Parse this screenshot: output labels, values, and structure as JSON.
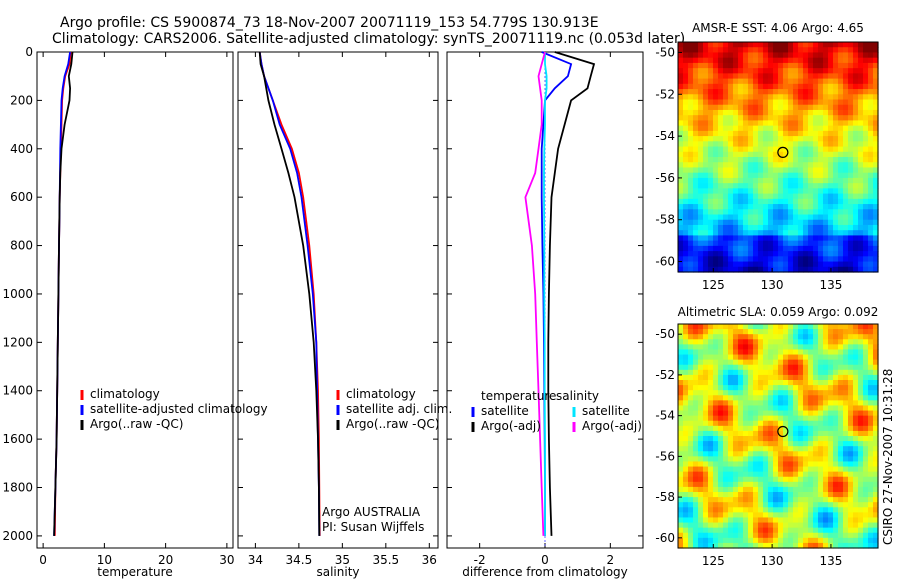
{
  "header": {
    "line1": "Argo profile: CS 5900874_73 18-Nov-2007 20071119_153 54.779S 130.913E",
    "line2": "Climatology: CARS2006. Satellite-adjusted climatology: synTS_20071119.nc (0.053d later)"
  },
  "side_stamp": "CSIRO 27-Nov-2007 10:31:28",
  "colors": {
    "red": "#ff0000",
    "blue": "#0000ff",
    "black": "#000000",
    "cyan": "#00e5ff",
    "magenta": "#ff00ff"
  },
  "chart_data": [
    {
      "type": "line",
      "xlabel": "temperature",
      "xlim": [
        -1,
        31
      ],
      "ylim": [
        0,
        2050
      ],
      "y_reversed": true,
      "xticks": [
        0,
        10,
        20,
        30
      ],
      "yticks": [
        0,
        200,
        400,
        600,
        800,
        1000,
        1200,
        1400,
        1600,
        1800,
        2000
      ],
      "depth": [
        0,
        50,
        100,
        150,
        200,
        300,
        400,
        500,
        600,
        800,
        1000,
        1200,
        1400,
        1600,
        1800,
        2000
      ],
      "series": [
        {
          "name": "climatology",
          "color": "#ff0000",
          "values": [
            4.5,
            4.3,
            3.6,
            3.3,
            3.1,
            3.0,
            2.9,
            2.8,
            2.7,
            2.6,
            2.5,
            2.4,
            2.3,
            2.2,
            2.0,
            1.9
          ]
        },
        {
          "name": "satellite-adjusted climatology",
          "color": "#0000ff",
          "values": [
            4.4,
            4.1,
            3.5,
            3.2,
            3.0,
            2.9,
            2.8,
            2.75,
            2.7,
            2.6,
            2.5,
            2.4,
            2.3,
            2.2,
            2.0,
            1.8
          ]
        },
        {
          "name": "Argo(..raw -QC)",
          "color": "#000000",
          "values": [
            4.8,
            4.6,
            4.2,
            4.4,
            4.3,
            3.5,
            3.0,
            2.8,
            2.7,
            2.6,
            2.5,
            2.4,
            2.3,
            2.2,
            2.0,
            1.8
          ]
        }
      ],
      "legend": [
        "climatology",
        "satellite-adjusted climatology",
        "Argo(..raw -QC)"
      ]
    },
    {
      "type": "line",
      "xlabel": "salinity",
      "xlim": [
        33.8,
        36.1
      ],
      "ylim": [
        0,
        2050
      ],
      "y_reversed": true,
      "xticks": [
        34,
        34.5,
        35,
        35.5,
        36
      ],
      "xticklabels": [
        "34",
        "34.5",
        "35",
        "35.5",
        "36"
      ],
      "depth": [
        0,
        50,
        100,
        200,
        300,
        400,
        500,
        600,
        800,
        1000,
        1200,
        1400,
        1600,
        1800,
        2000
      ],
      "series": [
        {
          "name": "climatology",
          "color": "#ff0000",
          "values": [
            34.05,
            34.07,
            34.1,
            34.2,
            34.3,
            34.42,
            34.5,
            34.55,
            34.62,
            34.67,
            34.7,
            34.72,
            34.73,
            34.735,
            34.74
          ]
        },
        {
          "name": "satellite adj. clim.",
          "color": "#0000ff",
          "values": [
            34.05,
            34.07,
            34.1,
            34.2,
            34.28,
            34.4,
            34.48,
            34.53,
            34.6,
            34.66,
            34.7,
            34.71,
            34.72,
            34.73,
            34.735
          ]
        },
        {
          "name": "Argo(..raw -QC)",
          "color": "#000000",
          "values": [
            34.05,
            34.06,
            34.1,
            34.15,
            34.22,
            34.3,
            34.38,
            34.45,
            34.55,
            34.62,
            34.67,
            34.7,
            34.72,
            34.73,
            34.735
          ]
        }
      ],
      "legend": [
        "climatology",
        "satellite adj. clim.",
        "Argo(..raw -QC)"
      ],
      "annotations": [
        "Argo AUSTRALIA",
        "PI: Susan Wijffels"
      ]
    },
    {
      "type": "line",
      "xlabel": "difference from climatology",
      "xlim": [
        -3,
        3
      ],
      "ylim": [
        0,
        2050
      ],
      "y_reversed": true,
      "xticks": [
        -2,
        0,
        2
      ],
      "depth": [
        0,
        50,
        100,
        150,
        200,
        300,
        400,
        500,
        600,
        800,
        1000,
        1200,
        1400,
        1600,
        1800,
        2000
      ],
      "series": [
        {
          "name": "temperature satellite",
          "color": "#0000ff",
          "values": [
            -0.1,
            0.8,
            0.7,
            0.3,
            0.0,
            -0.05,
            -0.1,
            -0.1,
            -0.1,
            -0.08,
            -0.05,
            -0.03,
            -0.02,
            -0.01,
            0.0,
            0.0
          ]
        },
        {
          "name": "temperature Argo(-adj)",
          "color": "#000000",
          "values": [
            0.3,
            1.5,
            1.4,
            1.3,
            0.8,
            0.6,
            0.4,
            0.3,
            0.2,
            0.15,
            0.12,
            0.1,
            0.1,
            0.12,
            0.15,
            0.2
          ]
        },
        {
          "name": "salinity satellite",
          "color": "#00e5ff",
          "values": [
            0.0,
            0.0,
            0.05,
            0.05,
            0.0,
            0.0,
            -0.02,
            -0.03,
            -0.03,
            -0.02,
            -0.02,
            -0.01,
            -0.01,
            0.0,
            0.0,
            0.0
          ]
        },
        {
          "name": "salinity Argo(-adj)",
          "color": "#ff00ff",
          "values": [
            0.0,
            -0.1,
            -0.2,
            -0.15,
            -0.1,
            -0.1,
            -0.2,
            -0.3,
            -0.6,
            -0.4,
            -0.3,
            -0.25,
            -0.2,
            -0.15,
            -0.1,
            -0.05
          ]
        }
      ],
      "legend_temperature": {
        "title": "temperature",
        "items": [
          "satellite",
          "Argo(-adj)"
        ]
      },
      "legend_salinity": {
        "title": "salinity",
        "items": [
          "satellite",
          "Argo(-adj)"
        ]
      }
    },
    {
      "type": "heatmap",
      "title": "AMSR-E SST: 4.06 Argo: 4.65",
      "xlim": [
        122,
        139
      ],
      "ylim": [
        -60.5,
        -49.5
      ],
      "xticks": [
        125,
        130,
        135
      ],
      "yticks": [
        -50,
        -52,
        -54,
        -56,
        -58,
        -60
      ],
      "marker": {
        "lon": 130.913,
        "lat": -54.779
      }
    },
    {
      "type": "heatmap",
      "title": "Altimetric SLA: 0.059 Argo: 0.092",
      "xlim": [
        122,
        139
      ],
      "ylim": [
        -60.5,
        -49.5
      ],
      "xticks": [
        125,
        130,
        135
      ],
      "yticks": [
        -50,
        -52,
        -54,
        -56,
        -58,
        -60
      ],
      "marker": {
        "lon": 130.913,
        "lat": -54.779
      }
    }
  ]
}
